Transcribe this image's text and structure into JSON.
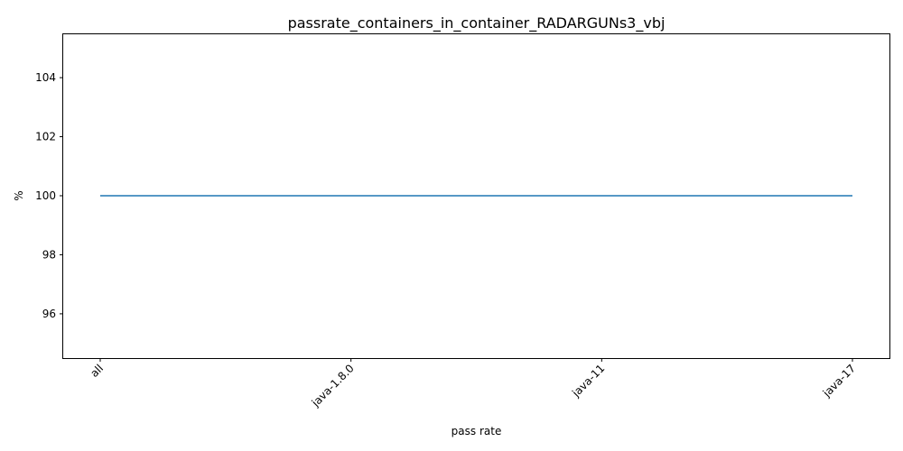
{
  "chart_data": {
    "type": "line",
    "title": "passrate_containers_in_container_RADARGUNs3_vbj",
    "xlabel": "pass rate",
    "ylabel": "%",
    "categories": [
      "all",
      "java-1.8.0",
      "java-11",
      "java-17"
    ],
    "series": [
      {
        "values": [
          100,
          100,
          100,
          100
        ],
        "color": "#1f77b4"
      }
    ],
    "ylim": [
      94.5,
      105.5
    ],
    "yticks": [
      96,
      98,
      100,
      102,
      104
    ],
    "grid": false,
    "x_tick_rotation_deg": 45
  }
}
